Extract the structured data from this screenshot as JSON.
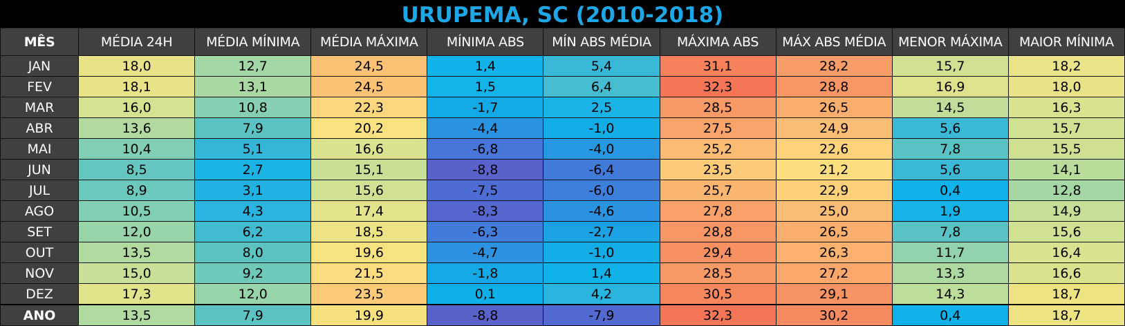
{
  "title": "URUPEMA, SC (2010-2018)",
  "chart_data": {
    "type": "table",
    "title": "URUPEMA, SC (2010-2018)",
    "columns": [
      "MÊS",
      "MÉDIA 24H",
      "MÉDIA MÍNIMA",
      "MÉDIA MÁXIMA",
      "MÍNIMA ABS",
      "MÍN ABS MÉDIA",
      "MÁXIMA ABS",
      "MÁX ABS MÉDIA",
      "MENOR MÁXIMA",
      "MAIOR MÍNIMA"
    ],
    "rows": [
      [
        "JAN",
        "18,0",
        "12,7",
        "24,5",
        "1,4",
        "5,4",
        "31,1",
        "28,2",
        "15,7",
        "18,2"
      ],
      [
        "FEV",
        "18,1",
        "13,1",
        "24,5",
        "1,5",
        "6,4",
        "32,3",
        "28,8",
        "16,9",
        "18,0"
      ],
      [
        "MAR",
        "16,0",
        "10,8",
        "22,3",
        "-1,7",
        "2,5",
        "28,5",
        "26,5",
        "14,5",
        "16,3"
      ],
      [
        "ABR",
        "13,6",
        "7,9",
        "20,2",
        "-4,4",
        "-1,0",
        "27,5",
        "24,9",
        "5,6",
        "15,7"
      ],
      [
        "MAI",
        "10,4",
        "5,1",
        "16,6",
        "-6,8",
        "-4,0",
        "25,2",
        "22,6",
        "7,8",
        "15,5"
      ],
      [
        "JUN",
        "8,5",
        "2,7",
        "15,1",
        "-8,8",
        "-6,4",
        "23,5",
        "21,2",
        "5,6",
        "14,1"
      ],
      [
        "JUL",
        "8,9",
        "3,1",
        "15,6",
        "-7,5",
        "-6,0",
        "25,7",
        "22,9",
        "0,4",
        "12,8"
      ],
      [
        "AGO",
        "10,5",
        "4,3",
        "17,4",
        "-8,3",
        "-4,6",
        "27,8",
        "25,0",
        "1,9",
        "14,9"
      ],
      [
        "SET",
        "12,0",
        "6,2",
        "18,5",
        "-6,3",
        "-2,7",
        "28,8",
        "26,5",
        "7,8",
        "15,6"
      ],
      [
        "OUT",
        "13,5",
        "8,0",
        "19,6",
        "-4,7",
        "-1,0",
        "29,4",
        "26,3",
        "11,7",
        "16,4"
      ],
      [
        "NOV",
        "15,0",
        "9,2",
        "21,5",
        "-1,8",
        "1,4",
        "28,5",
        "27,2",
        "13,3",
        "16,6"
      ],
      [
        "DEZ",
        "17,3",
        "12,0",
        "23,5",
        "0,1",
        "4,2",
        "30,5",
        "29,1",
        "14,3",
        "18,7"
      ],
      [
        "ANO",
        "13,5",
        "7,9",
        "19,9",
        "-8,8",
        "-7,9",
        "32,3",
        "30,2",
        "0,4",
        "18,7"
      ]
    ],
    "color_scale": {
      "-9": "#5b5fc9",
      "-7": "#4a72d8",
      "-5": "#2f8ee0",
      "-2": "#14a8e6",
      "1": "#0db3ea",
      "4": "#26b2e0",
      "6": "#3fbad2",
      "8": "#5cc3c2",
      "10": "#7acdb6",
      "12": "#97d4aa",
      "14": "#b9dc9c",
      "16": "#d5e290",
      "18": "#e8e388",
      "19.5": "#f5e27e",
      "21": "#fde080",
      "23": "#fcd07a",
      "25": "#fbbd74",
      "27": "#f9a96c",
      "29": "#f89563",
      "31": "#f6825b",
      "33": "#f36f54"
    },
    "header_color": "#404040",
    "title_color": "#1ea7e6"
  }
}
